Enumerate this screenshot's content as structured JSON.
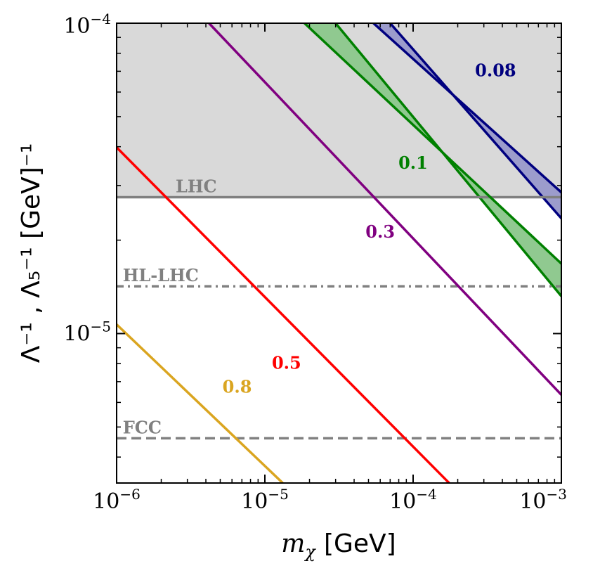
{
  "chart_data": {
    "type": "line",
    "x_scale": "log",
    "y_scale": "log",
    "xlim": [
      1e-06,
      0.001
    ],
    "ylim": [
      3.3e-06,
      0.0001
    ],
    "xlabel_symbol": "m",
    "xlabel_sub": "χ",
    "xlabel_unit": "[GeV]",
    "ylabel": "Λ⁻¹ , Λ₅⁻¹ [GeV]⁻¹",
    "x_ticks": [
      {
        "value": 1e-06,
        "exp": "−6"
      },
      {
        "value": 1e-05,
        "exp": "−5"
      },
      {
        "value": 0.0001,
        "exp": "−4"
      },
      {
        "value": 0.001,
        "exp": "−3"
      }
    ],
    "y_ticks": [
      {
        "value": 1e-05,
        "exp": "−5"
      },
      {
        "value": 0.0001,
        "exp": "−4"
      }
    ],
    "tick_base": "10",
    "excluded_region": {
      "y_min": 2.75e-05,
      "y_max": 0.0001,
      "color": "#d9d9d9"
    },
    "limits": [
      {
        "name": "LHC",
        "y": 2.75e-05,
        "style": "solid",
        "label_x": 2.5e-06
      },
      {
        "name": "HL-LHC",
        "y": 1.42e-05,
        "style": "dashdot",
        "label_x": 1.1e-06
      },
      {
        "name": "FCC",
        "y": 4.6e-06,
        "style": "dashed",
        "label_x": 1.1e-06
      }
    ],
    "series": [
      {
        "label": "0.8",
        "color": "#DAA520",
        "x": [
          1e-06,
          1.32e-05
        ],
        "y": [
          1.07e-05,
          3.3e-06
        ],
        "label_x": 6.5e-06,
        "label_y": 6.45e-06
      },
      {
        "label": "0.5",
        "color": "#FF0000",
        "x": [
          1e-06,
          0.000175
        ],
        "y": [
          3.98e-05,
          3.3e-06
        ],
        "label_x": 1.4e-05,
        "label_y": 7.7e-06
      },
      {
        "label": "0.3",
        "color": "#800080",
        "x": [
          4.2e-06,
          0.001
        ],
        "y": [
          0.0001,
          6.35e-06
        ],
        "label_x": 6e-05,
        "label_y": 2.04e-05
      },
      {
        "label": "0.1",
        "color": "#008000",
        "x": [
          1.85e-05,
          0.001
        ],
        "y": [
          0.0001,
          1.68e-05
        ],
        "label_x": 0.0001,
        "label_y": 3.4e-05
      },
      {
        "label": "0.08",
        "color": "#00007F",
        "x": [
          5.4e-05,
          0.001
        ],
        "y": [
          0.0001,
          2.85e-05
        ],
        "label_x": 0.00036,
        "label_y": 6.75e-05
      }
    ],
    "bands": [
      {
        "color": "#008000",
        "fill": "#90c990",
        "lower": {
          "x": [
            3e-05,
            0.001
          ],
          "y": [
            0.0001,
            1.32e-05
          ]
        },
        "upper": {
          "x": [
            1.85e-05,
            0.001
          ],
          "y": [
            0.0001,
            1.68e-05
          ]
        }
      },
      {
        "color": "#00007F",
        "fill": "#9c9ccc",
        "lower": {
          "x": [
            7e-05,
            0.001
          ],
          "y": [
            0.0001,
            2.35e-05
          ]
        },
        "upper": {
          "x": [
            5.4e-05,
            0.001
          ],
          "y": [
            0.0001,
            2.85e-05
          ]
        }
      }
    ]
  }
}
